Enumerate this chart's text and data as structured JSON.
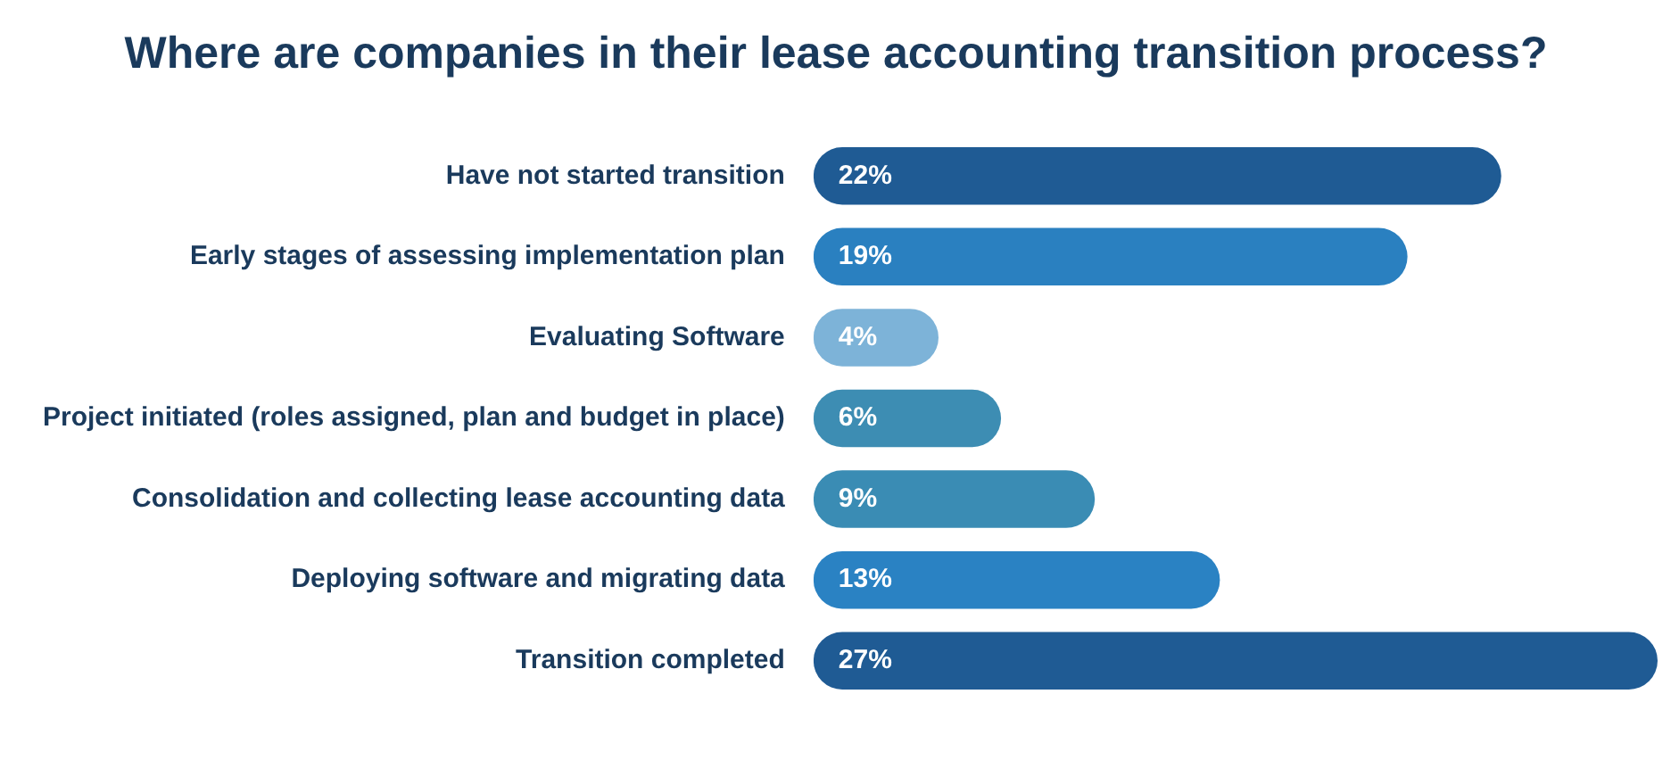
{
  "chart_data": {
    "type": "bar",
    "orientation": "horizontal",
    "title": "Where are companies in their lease accounting transition process?",
    "categories": [
      "Have not started transition",
      "Early stages of assessing implementation plan",
      "Evaluating Software",
      "Project initiated (roles assigned, plan and budget in place)",
      "Consolidation and collecting lease accounting data",
      "Deploying software and migrating data",
      "Transition completed"
    ],
    "values": [
      22,
      19,
      4,
      6,
      9,
      13,
      27
    ],
    "colors": [
      "#1f5b94",
      "#2a80c0",
      "#7db3d8",
      "#3d8db3",
      "#3a8cb4",
      "#2a82c3",
      "#1f5b94"
    ],
    "value_labels": [
      "22%",
      "19%",
      "4%",
      "6%",
      "9%",
      "13%",
      "27%"
    ],
    "grid": false,
    "legend": false
  }
}
